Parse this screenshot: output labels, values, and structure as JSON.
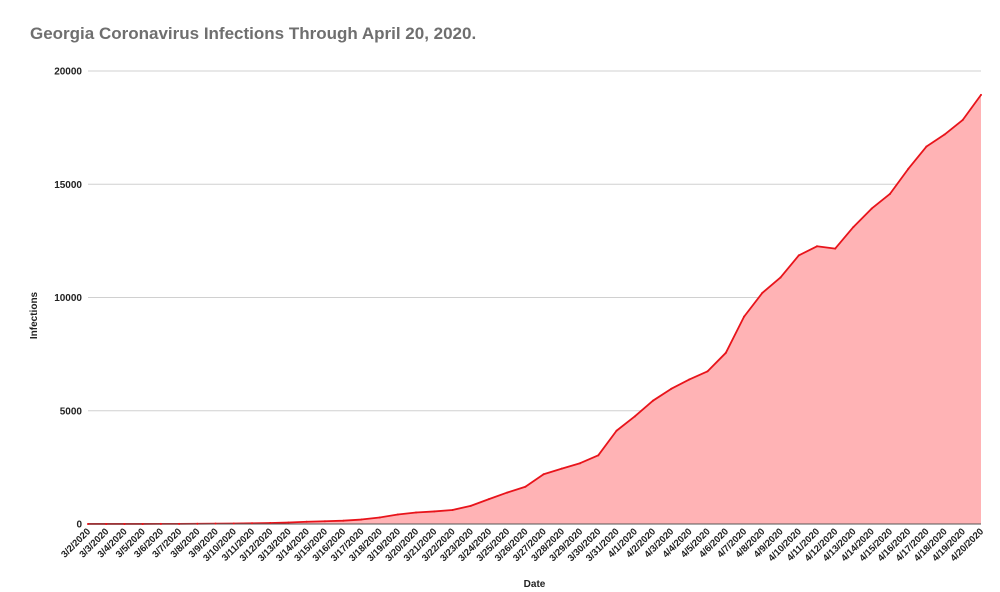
{
  "chart_data": {
    "type": "area",
    "title": "Georgia Coronavirus Infections Through April 20, 2020.",
    "xlabel": "Date",
    "ylabel": "Infections",
    "ylim": [
      0,
      20000
    ],
    "yticks": [
      0,
      5000,
      10000,
      15000,
      20000
    ],
    "grid": true,
    "legend": "none",
    "colors": {
      "line": "#e8141b",
      "fill": "#ffb3b5",
      "grid": "#d0d0d0",
      "title": "#6f6f6f"
    },
    "x": [
      "3/2/2020",
      "3/3/2020",
      "3/4/2020",
      "3/5/2020",
      "3/6/2020",
      "3/7/2020",
      "3/8/2020",
      "3/9/2020",
      "3/10/2020",
      "3/11/2020",
      "3/12/2020",
      "3/13/2020",
      "3/14/2020",
      "3/15/2020",
      "3/16/2020",
      "3/17/2020",
      "3/18/2020",
      "3/19/2020",
      "3/20/2020",
      "3/21/2020",
      "3/22/2020",
      "3/23/2020",
      "3/24/2020",
      "3/25/2020",
      "3/26/2020",
      "3/27/2020",
      "3/28/2020",
      "3/29/2020",
      "3/30/2020",
      "3/31/2020",
      "4/1/2020",
      "4/2/2020",
      "4/3/2020",
      "4/4/2020",
      "4/5/2020",
      "4/6/2020",
      "4/7/2020",
      "4/8/2020",
      "4/9/2020",
      "4/10/2020",
      "4/11/2020",
      "4/12/2020",
      "4/13/2020",
      "4/14/2020",
      "4/15/2020",
      "4/16/2020",
      "4/17/2020",
      "4/18/2020",
      "4/19/2020",
      "4/20/2020"
    ],
    "values": [
      2,
      2,
      2,
      2,
      6,
      6,
      11,
      17,
      22,
      31,
      42,
      66,
      99,
      121,
      146,
      197,
      287,
      420,
      507,
      555,
      620,
      800,
      1097,
      1387,
      1643,
      2198,
      2446,
      2683,
      3032,
      4117,
      4748,
      5444,
      5967,
      6383,
      6742,
      7558,
      9156,
      10204,
      10885,
      11859,
      12261,
      12159,
      13115,
      13926,
      14571,
      15669,
      16661,
      17194,
      17841,
      18947
    ]
  }
}
